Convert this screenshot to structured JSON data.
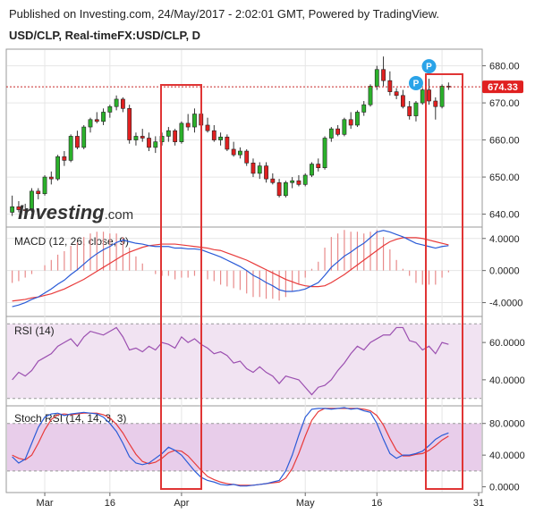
{
  "header": {
    "published": "Published on Investing.com, 24/May/2017 - 2:02:01 GMT, Powered by TradingView.",
    "instrument": "USD/CLP, Real-timeFX:USD/CLP, D"
  },
  "brand": {
    "logo_word": "Investing",
    "logo_suffix": ".com"
  },
  "price_label": "674.33",
  "marker_label": "P",
  "colors": {
    "up": "#2bb12b",
    "down": "#e02020",
    "wick": "#333333",
    "macd_line": "#2a5bd7",
    "signal_line": "#e83a3a",
    "rsi_line": "#9b4fb0",
    "band_fill": "#f1e3f2",
    "stoch_band_fill": "#e8cdea",
    "highlight_box": "#e03535",
    "price_badge": "#e02020",
    "marker": "#2aa3e8",
    "grid": "#e6e6e6"
  },
  "chart_data": [
    {
      "type": "candlestick",
      "title": "USD/CLP, Real-timeFX:USD/CLP, D",
      "x_ticks": [
        "Mar",
        "16",
        "Apr",
        "May",
        "16",
        "31"
      ],
      "y_ticks": [
        "680.00",
        "670.00",
        "660.00",
        "650.00",
        "640.00"
      ],
      "ylim": [
        637,
        684
      ],
      "current_price": 674.33,
      "candles": [
        {
          "o": 640.5,
          "h": 645.0,
          "l": 639.5,
          "c": 642.0
        },
        {
          "o": 642.0,
          "h": 643.5,
          "l": 640.5,
          "c": 641.2
        },
        {
          "o": 641.2,
          "h": 642.8,
          "l": 640.0,
          "c": 641.0
        },
        {
          "o": 641.0,
          "h": 647.0,
          "l": 640.5,
          "c": 646.2
        },
        {
          "o": 646.2,
          "h": 647.0,
          "l": 644.0,
          "c": 645.5
        },
        {
          "o": 645.5,
          "h": 650.5,
          "l": 645.0,
          "c": 650.0
        },
        {
          "o": 650.0,
          "h": 651.5,
          "l": 648.0,
          "c": 649.5
        },
        {
          "o": 649.5,
          "h": 656.0,
          "l": 649.0,
          "c": 655.5
        },
        {
          "o": 655.5,
          "h": 657.0,
          "l": 653.0,
          "c": 654.5
        },
        {
          "o": 654.5,
          "h": 661.5,
          "l": 654.0,
          "c": 661.0
        },
        {
          "o": 661.0,
          "h": 662.5,
          "l": 657.5,
          "c": 658.0
        },
        {
          "o": 658.0,
          "h": 664.0,
          "l": 657.5,
          "c": 663.5
        },
        {
          "o": 663.5,
          "h": 666.0,
          "l": 662.0,
          "c": 665.5
        },
        {
          "o": 665.5,
          "h": 667.5,
          "l": 664.5,
          "c": 665.0
        },
        {
          "o": 665.0,
          "h": 668.5,
          "l": 664.0,
          "c": 667.5
        },
        {
          "o": 667.5,
          "h": 669.5,
          "l": 666.0,
          "c": 669.0
        },
        {
          "o": 669.0,
          "h": 672.0,
          "l": 668.0,
          "c": 671.0
        },
        {
          "o": 671.0,
          "h": 671.5,
          "l": 667.5,
          "c": 668.5
        },
        {
          "o": 668.5,
          "h": 669.5,
          "l": 659.0,
          "c": 660.0
        },
        {
          "o": 660.0,
          "h": 662.0,
          "l": 658.5,
          "c": 661.0
        },
        {
          "o": 661.0,
          "h": 663.0,
          "l": 659.5,
          "c": 660.5
        },
        {
          "o": 660.5,
          "h": 662.0,
          "l": 657.0,
          "c": 658.0
        },
        {
          "o": 658.0,
          "h": 661.0,
          "l": 656.5,
          "c": 659.5
        },
        {
          "o": 659.5,
          "h": 662.0,
          "l": 658.5,
          "c": 661.0
        },
        {
          "o": 661.0,
          "h": 663.5,
          "l": 659.5,
          "c": 662.5
        },
        {
          "o": 662.5,
          "h": 663.0,
          "l": 658.5,
          "c": 659.5
        },
        {
          "o": 659.5,
          "h": 665.0,
          "l": 659.0,
          "c": 664.5
        },
        {
          "o": 664.5,
          "h": 667.0,
          "l": 662.5,
          "c": 663.5
        },
        {
          "o": 663.5,
          "h": 668.5,
          "l": 662.0,
          "c": 667.0
        },
        {
          "o": 667.0,
          "h": 669.0,
          "l": 663.5,
          "c": 664.0
        },
        {
          "o": 664.0,
          "h": 666.0,
          "l": 662.0,
          "c": 662.5
        },
        {
          "o": 662.5,
          "h": 664.0,
          "l": 659.5,
          "c": 660.0
        },
        {
          "o": 660.0,
          "h": 662.0,
          "l": 658.5,
          "c": 660.8
        },
        {
          "o": 660.8,
          "h": 661.5,
          "l": 657.0,
          "c": 657.5
        },
        {
          "o": 657.5,
          "h": 659.5,
          "l": 655.5,
          "c": 656.0
        },
        {
          "o": 656.0,
          "h": 658.0,
          "l": 655.0,
          "c": 657.0
        },
        {
          "o": 657.0,
          "h": 657.5,
          "l": 653.0,
          "c": 653.8
        },
        {
          "o": 653.8,
          "h": 655.0,
          "l": 650.0,
          "c": 651.0
        },
        {
          "o": 651.0,
          "h": 654.0,
          "l": 649.5,
          "c": 653.0
        },
        {
          "o": 653.0,
          "h": 654.0,
          "l": 648.5,
          "c": 649.5
        },
        {
          "o": 649.5,
          "h": 651.0,
          "l": 648.0,
          "c": 648.5
        },
        {
          "o": 648.5,
          "h": 649.5,
          "l": 644.5,
          "c": 645.0
        },
        {
          "o": 645.0,
          "h": 649.0,
          "l": 644.5,
          "c": 648.5
        },
        {
          "o": 648.5,
          "h": 650.0,
          "l": 647.0,
          "c": 649.0
        },
        {
          "o": 649.0,
          "h": 650.5,
          "l": 647.5,
          "c": 648.0
        },
        {
          "o": 648.0,
          "h": 651.0,
          "l": 647.5,
          "c": 650.5
        },
        {
          "o": 650.5,
          "h": 654.0,
          "l": 650.0,
          "c": 653.5
        },
        {
          "o": 653.5,
          "h": 655.0,
          "l": 651.5,
          "c": 652.5
        },
        {
          "o": 652.5,
          "h": 661.0,
          "l": 652.0,
          "c": 660.5
        },
        {
          "o": 660.5,
          "h": 663.5,
          "l": 659.5,
          "c": 663.0
        },
        {
          "o": 663.0,
          "h": 664.0,
          "l": 661.0,
          "c": 661.5
        },
        {
          "o": 661.5,
          "h": 666.0,
          "l": 661.0,
          "c": 665.5
        },
        {
          "o": 665.5,
          "h": 667.5,
          "l": 663.0,
          "c": 664.0
        },
        {
          "o": 664.0,
          "h": 668.0,
          "l": 663.5,
          "c": 667.5
        },
        {
          "o": 667.5,
          "h": 670.5,
          "l": 666.5,
          "c": 669.5
        },
        {
          "o": 669.5,
          "h": 675.0,
          "l": 669.0,
          "c": 674.5
        },
        {
          "o": 674.5,
          "h": 680.0,
          "l": 673.5,
          "c": 679.0
        },
        {
          "o": 679.0,
          "h": 682.5,
          "l": 674.5,
          "c": 676.0
        },
        {
          "o": 676.0,
          "h": 678.5,
          "l": 672.0,
          "c": 673.0
        },
        {
          "o": 673.0,
          "h": 674.0,
          "l": 671.0,
          "c": 672.0
        },
        {
          "o": 672.0,
          "h": 673.5,
          "l": 668.5,
          "c": 669.0
        },
        {
          "o": 669.0,
          "h": 670.5,
          "l": 665.5,
          "c": 666.5
        },
        {
          "o": 666.5,
          "h": 670.5,
          "l": 665.0,
          "c": 670.0
        },
        {
          "o": 670.0,
          "h": 674.0,
          "l": 669.5,
          "c": 673.5
        },
        {
          "o": 673.5,
          "h": 676.5,
          "l": 669.5,
          "c": 670.5
        },
        {
          "o": 670.5,
          "h": 671.5,
          "l": 665.5,
          "c": 669.0
        },
        {
          "o": 669.0,
          "h": 675.0,
          "l": 668.5,
          "c": 674.5
        },
        {
          "o": 674.5,
          "h": 675.5,
          "l": 673.5,
          "c": 674.33
        }
      ],
      "annotations": [
        "P",
        "P"
      ]
    },
    {
      "type": "line",
      "title": "MACD (12, 26, close, 9)",
      "y_ticks": [
        "4.0000",
        "0.0000",
        "-4.0000"
      ],
      "ylim": [
        -5.5,
        5.2
      ],
      "series": [
        {
          "name": "MACD",
          "values": [
            -4.5,
            -4.3,
            -4.0,
            -3.6,
            -3.3,
            -2.8,
            -2.3,
            -1.7,
            -1.2,
            -0.5,
            0.1,
            0.8,
            1.5,
            2.1,
            2.6,
            3.0,
            3.5,
            3.8,
            3.6,
            3.4,
            3.3,
            3.1,
            3.0,
            3.0,
            3.0,
            2.8,
            2.8,
            2.7,
            2.7,
            2.6,
            2.3,
            2.0,
            1.7,
            1.3,
            0.9,
            0.5,
            0.0,
            -0.6,
            -1.0,
            -1.5,
            -1.9,
            -2.4,
            -2.6,
            -2.6,
            -2.5,
            -2.3,
            -1.9,
            -1.5,
            -0.6,
            0.4,
            1.1,
            1.8,
            2.3,
            2.9,
            3.4,
            4.1,
            4.8,
            5.0,
            4.8,
            4.5,
            4.2,
            3.8,
            3.4,
            3.2,
            3.0,
            2.8,
            3.0,
            3.1
          ]
        },
        {
          "name": "Signal",
          "values": [
            -3.8,
            -3.7,
            -3.6,
            -3.4,
            -3.3,
            -3.1,
            -2.9,
            -2.6,
            -2.3,
            -1.9,
            -1.5,
            -1.1,
            -0.6,
            -0.1,
            0.4,
            0.9,
            1.4,
            1.9,
            2.3,
            2.6,
            2.9,
            3.1,
            3.2,
            3.3,
            3.3,
            3.3,
            3.2,
            3.1,
            3.0,
            2.9,
            2.8,
            2.6,
            2.5,
            2.2,
            1.9,
            1.6,
            1.3,
            0.9,
            0.5,
            0.1,
            -0.3,
            -0.7,
            -1.1,
            -1.4,
            -1.7,
            -1.9,
            -2.0,
            -2.0,
            -1.9,
            -1.5,
            -1.0,
            -0.5,
            0.1,
            0.7,
            1.3,
            1.9,
            2.5,
            3.1,
            3.6,
            3.9,
            4.1,
            4.1,
            4.1,
            4.0,
            3.8,
            3.6,
            3.4,
            3.2
          ]
        }
      ]
    },
    {
      "type": "line",
      "title": "RSI (14)",
      "y_ticks": [
        "60.0000",
        "40.0000"
      ],
      "ylim": [
        27,
        73
      ],
      "band": [
        30,
        70
      ],
      "series": [
        {
          "name": "RSI",
          "values": [
            40,
            44,
            42,
            45,
            50,
            52,
            54,
            58,
            60,
            62,
            58,
            63,
            66,
            65,
            64,
            66,
            68,
            63,
            56,
            57,
            55,
            58,
            56,
            60,
            59,
            57,
            63,
            60,
            62,
            59,
            57,
            54,
            55,
            53,
            49,
            50,
            46,
            44,
            47,
            44,
            42,
            38,
            42,
            41,
            40,
            36,
            32,
            36,
            37,
            40,
            45,
            49,
            54,
            58,
            56,
            60,
            62,
            64,
            64,
            68,
            68,
            61,
            60,
            56,
            58,
            54,
            60,
            59
          ]
        }
      ]
    },
    {
      "type": "line",
      "title": "Stoch RSI (14, 14, 3, 3)",
      "y_ticks": [
        "80.0000",
        "40.0000",
        "0.0000"
      ],
      "ylim": [
        -5,
        100
      ],
      "band": [
        20,
        80
      ],
      "series": [
        {
          "name": "%K",
          "values": [
            38,
            30,
            35,
            55,
            75,
            88,
            92,
            93,
            90,
            92,
            93,
            94,
            93,
            92,
            88,
            80,
            70,
            55,
            38,
            30,
            28,
            30,
            36,
            42,
            50,
            46,
            40,
            30,
            20,
            12,
            8,
            6,
            3,
            2,
            3,
            1,
            1,
            2,
            3,
            4,
            6,
            8,
            20,
            40,
            65,
            88,
            98,
            99,
            99,
            98,
            99,
            100,
            98,
            99,
            96,
            94,
            80,
            60,
            42,
            36,
            40,
            40,
            42,
            45,
            52,
            60,
            65,
            68
          ]
        },
        {
          "name": "%D",
          "values": [
            40,
            36,
            34,
            40,
            55,
            72,
            85,
            91,
            92,
            91,
            92,
            93,
            93,
            93,
            91,
            87,
            79,
            68,
            54,
            41,
            32,
            29,
            31,
            36,
            43,
            46,
            45,
            39,
            30,
            21,
            13,
            9,
            6,
            4,
            3,
            2,
            2,
            2,
            3,
            4,
            5,
            6,
            11,
            23,
            42,
            64,
            84,
            95,
            99,
            99,
            99,
            99,
            99,
            99,
            98,
            96,
            90,
            78,
            61,
            46,
            39,
            39,
            41,
            42,
            46,
            52,
            59,
            64
          ]
        }
      ]
    }
  ]
}
